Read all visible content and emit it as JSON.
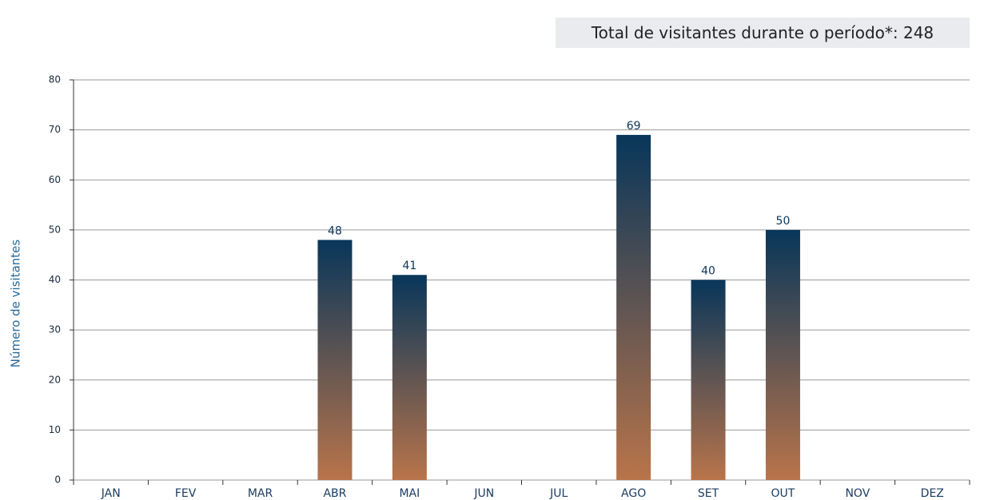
{
  "total": {
    "label": "Total de visitantes durante o período*:",
    "value": 248
  },
  "chart_data": {
    "type": "bar",
    "ylabel": "Número de visitantes",
    "categories": [
      "JAN",
      "FEV",
      "MAR",
      "ABR",
      "MAI",
      "JUN",
      "JUL",
      "AGO",
      "SET",
      "OUT",
      "NOV",
      "DEZ"
    ],
    "values": [
      null,
      null,
      null,
      48,
      41,
      null,
      null,
      69,
      40,
      50,
      null,
      null
    ],
    "color_top": "#08365a",
    "color_bottom": "#b9744a",
    "ylim": [
      0,
      80
    ],
    "yticks": [
      0,
      10,
      20,
      30,
      40,
      50,
      60,
      70,
      80
    ],
    "grid": true
  }
}
